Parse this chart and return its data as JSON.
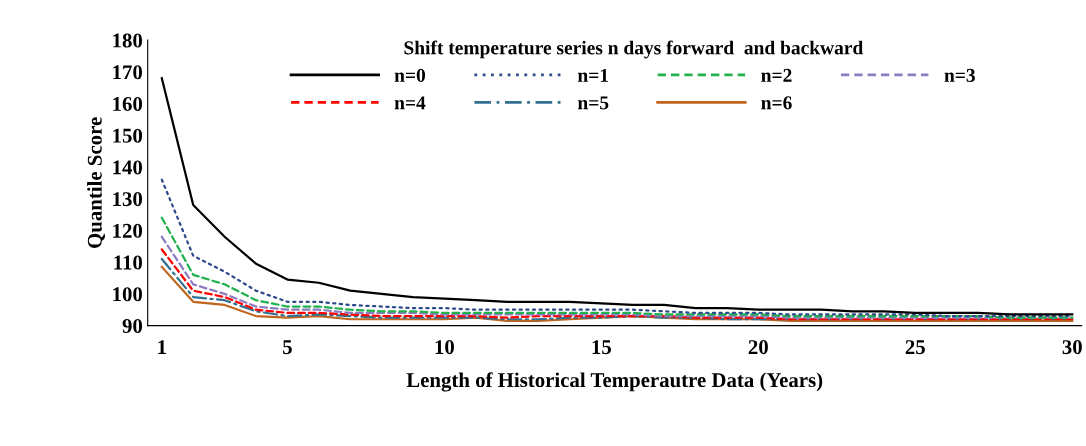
{
  "chart_data": {
    "type": "line",
    "xlabel": "Length of Historical Temperautre Data (Years)",
    "ylabel": "Quantile Score",
    "legend_title": "Shift temperature series n days forward  and backward",
    "legend": "top",
    "grid": false,
    "marker": "none",
    "x": [
      1,
      2,
      3,
      4,
      5,
      6,
      7,
      8,
      9,
      10,
      11,
      12,
      13,
      14,
      15,
      16,
      17,
      18,
      19,
      20,
      21,
      22,
      23,
      24,
      25,
      26,
      27,
      28,
      29,
      30
    ],
    "xlim": [
      0.55,
      30.3
    ],
    "xticks": [
      1,
      5,
      10,
      15,
      20,
      25,
      30
    ],
    "ylim": [
      90,
      180
    ],
    "yticks": [
      90,
      100,
      110,
      120,
      130,
      140,
      150,
      160,
      170,
      180
    ],
    "series": [
      {
        "name": "n=0",
        "color": "#000000",
        "line_style": "solid",
        "values": [
          168,
          128,
          118,
          109.5,
          104.5,
          103.5,
          101,
          100,
          99,
          98.5,
          98,
          97.5,
          97.5,
          97.5,
          97,
          96.5,
          96.5,
          95.5,
          95.5,
          95,
          95,
          95,
          94.5,
          94.5,
          94,
          94,
          94,
          93.5,
          93.5,
          93.5
        ]
      },
      {
        "name": "n=1",
        "color": "#2f4a8a",
        "line_style": "dotted",
        "values": [
          136,
          112,
          107,
          101,
          97.5,
          97.5,
          96.5,
          96,
          95.5,
          95.5,
          95,
          95,
          95,
          95,
          95,
          95,
          94.5,
          94,
          94,
          94,
          93.5,
          93.5,
          93.5,
          93.5,
          93.5,
          93,
          93,
          93,
          93,
          93
        ]
      },
      {
        "name": "n=2",
        "color": "#22b14c",
        "line_style": "dashed",
        "values": [
          124,
          106,
          103,
          98,
          96,
          96,
          95,
          94.5,
          94.5,
          94,
          94,
          94,
          94,
          94,
          94,
          94,
          93.5,
          93.5,
          93.5,
          93.5,
          93,
          93,
          93,
          93,
          93,
          93,
          93,
          92.5,
          92.5,
          92.5
        ]
      },
      {
        "name": "n=3",
        "color": "#8e7cc3",
        "line_style": "dashed",
        "values": [
          118,
          103,
          100,
          96,
          95,
          95,
          94,
          94,
          94,
          93.5,
          93.5,
          93.5,
          93.5,
          93.5,
          93.5,
          93.5,
          93,
          93,
          93,
          93,
          92.5,
          92.5,
          92.5,
          92.5,
          92.5,
          92.5,
          92.5,
          92.5,
          92.5,
          92.5
        ]
      },
      {
        "name": "n=4",
        "color": "#ff0000",
        "line_style": "dashed",
        "values": [
          114,
          101,
          99,
          95,
          94,
          94,
          93.5,
          93,
          93,
          93,
          93,
          92.5,
          93,
          93,
          93,
          93,
          93,
          92.5,
          92.5,
          92.5,
          92,
          92,
          92,
          92,
          92,
          92,
          92,
          92,
          92,
          92
        ]
      },
      {
        "name": "n=5",
        "color": "#31708f",
        "line_style": "dashdot",
        "values": [
          111,
          99,
          98,
          94.5,
          93,
          93.5,
          93,
          92.5,
          92.5,
          92.5,
          92.5,
          92,
          92,
          92.5,
          92.5,
          93,
          92.5,
          92.5,
          92,
          92,
          92,
          92,
          92,
          92,
          92,
          92,
          92,
          92,
          92,
          92
        ]
      },
      {
        "name": "n=6",
        "color": "#c0651e",
        "line_style": "solid",
        "values": [
          108.5,
          97.5,
          96.5,
          93,
          92.5,
          93,
          92,
          92,
          92,
          92,
          92.5,
          91.5,
          91.5,
          92,
          92.5,
          93,
          92.5,
          92,
          92,
          92,
          91.5,
          91.5,
          91.5,
          91.5,
          91.5,
          91.5,
          91.5,
          91.5,
          91.5,
          91.5
        ]
      }
    ]
  }
}
